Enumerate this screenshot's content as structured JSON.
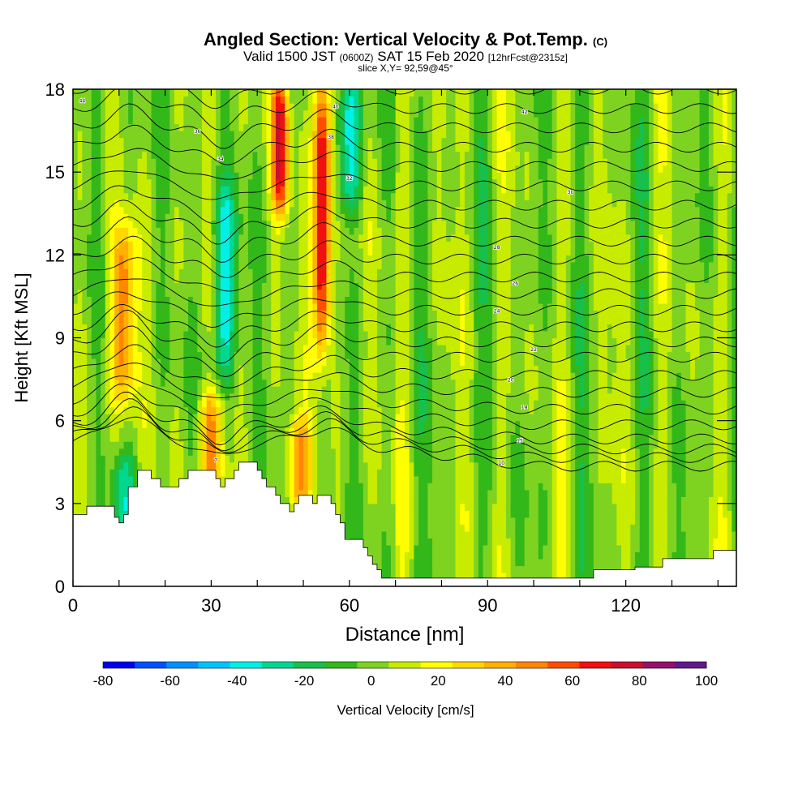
{
  "title": {
    "main": "Angled Section: Vertical Velocity & Pot.Temp.",
    "main_suffix": "(C)",
    "valid_a": "Valid 1500 JST",
    "valid_b": "(0600Z)",
    "valid_c": "SAT 15 Feb 2020",
    "valid_d": "[12hrFcst@2315z]",
    "slice": "slice X,Y= 92,59@45°"
  },
  "chart_data": {
    "type": "heatmap",
    "xlabel": "Distance [nm]",
    "ylabel": "Height [Kft MSL]",
    "xlim": [
      0,
      144
    ],
    "ylim": [
      0,
      18
    ],
    "x_ticks": [
      0,
      30,
      60,
      90,
      120
    ],
    "y_ticks": [
      0,
      3,
      6,
      9,
      12,
      15,
      18
    ],
    "colorbar": {
      "label": "Vertical Velocity [cm/s]",
      "ticks": [
        -80,
        -60,
        -40,
        -20,
        0,
        20,
        40,
        60,
        80,
        100
      ],
      "bins": [
        {
          "lo": -80,
          "hi": -70,
          "color": "#0000ee"
        },
        {
          "lo": -70,
          "hi": -60,
          "color": "#0050ff"
        },
        {
          "lo": -60,
          "hi": -50,
          "color": "#0090ff"
        },
        {
          "lo": -50,
          "hi": -40,
          "color": "#00c4ff"
        },
        {
          "lo": -40,
          "hi": -30,
          "color": "#00f0e6"
        },
        {
          "lo": -30,
          "hi": -20,
          "color": "#00d890"
        },
        {
          "lo": -20,
          "hi": -10,
          "color": "#16c04a"
        },
        {
          "lo": -10,
          "hi": 0,
          "color": "#33b81a"
        },
        {
          "lo": 0,
          "hi": 10,
          "color": "#7ed321"
        },
        {
          "lo": 10,
          "hi": 20,
          "color": "#c8ec00"
        },
        {
          "lo": 20,
          "hi": 30,
          "color": "#ffff00"
        },
        {
          "lo": 30,
          "hi": 40,
          "color": "#ffd800"
        },
        {
          "lo": 40,
          "hi": 50,
          "color": "#ffb000"
        },
        {
          "lo": 50,
          "hi": 60,
          "color": "#ff8600"
        },
        {
          "lo": 60,
          "hi": 70,
          "color": "#ff4d00"
        },
        {
          "lo": 70,
          "hi": 80,
          "color": "#f01010"
        },
        {
          "lo": 80,
          "hi": 90,
          "color": "#c8102e"
        },
        {
          "lo": 90,
          "hi": 100,
          "color": "#96106a"
        },
        {
          "lo": 100,
          "hi": 110,
          "color": "#601a8c"
        }
      ]
    },
    "terrain_kft": [
      [
        0,
        2.6
      ],
      [
        3,
        2.6
      ],
      [
        3,
        2.9
      ],
      [
        9,
        2.9
      ],
      [
        9,
        2.5
      ],
      [
        10,
        2.5
      ],
      [
        10,
        2.3
      ],
      [
        11,
        2.3
      ],
      [
        11,
        2.6
      ],
      [
        12,
        2.6
      ],
      [
        12,
        3.6
      ],
      [
        14,
        3.6
      ],
      [
        14,
        4.2
      ],
      [
        17,
        4.2
      ],
      [
        17,
        3.9
      ],
      [
        19,
        3.9
      ],
      [
        19,
        3.6
      ],
      [
        23,
        3.6
      ],
      [
        23,
        3.9
      ],
      [
        25,
        3.9
      ],
      [
        25,
        4.2
      ],
      [
        31,
        4.2
      ],
      [
        31,
        3.9
      ],
      [
        32,
        3.9
      ],
      [
        32,
        3.6
      ],
      [
        33,
        3.6
      ],
      [
        33,
        3.9
      ],
      [
        35,
        3.9
      ],
      [
        35,
        4.2
      ],
      [
        36,
        4.2
      ],
      [
        36,
        4.5
      ],
      [
        40,
        4.5
      ],
      [
        40,
        4.2
      ],
      [
        41,
        4.2
      ],
      [
        41,
        3.9
      ],
      [
        42,
        3.9
      ],
      [
        42,
        3.6
      ],
      [
        44,
        3.6
      ],
      [
        44,
        3.3
      ],
      [
        45,
        3.3
      ],
      [
        45,
        3.0
      ],
      [
        47,
        3.0
      ],
      [
        47,
        2.7
      ],
      [
        48,
        2.7
      ],
      [
        48,
        3.0
      ],
      [
        49,
        3.0
      ],
      [
        49,
        3.3
      ],
      [
        52,
        3.3
      ],
      [
        52,
        3.0
      ],
      [
        53,
        3.0
      ],
      [
        53,
        3.3
      ],
      [
        56,
        3.3
      ],
      [
        56,
        3.0
      ],
      [
        57,
        3.0
      ],
      [
        57,
        2.6
      ],
      [
        58,
        2.6
      ],
      [
        58,
        2.3
      ],
      [
        59,
        2.3
      ],
      [
        59,
        1.7
      ],
      [
        63,
        1.7
      ],
      [
        63,
        1.4
      ],
      [
        64,
        1.4
      ],
      [
        64,
        1.1
      ],
      [
        65,
        1.1
      ],
      [
        65,
        0.8
      ],
      [
        66,
        0.8
      ],
      [
        66,
        0.6
      ],
      [
        67,
        0.6
      ],
      [
        67,
        0.3
      ],
      [
        113,
        0.3
      ],
      [
        113,
        0.6
      ],
      [
        122,
        0.6
      ],
      [
        122,
        0.7
      ],
      [
        128,
        0.7
      ],
      [
        128,
        1.0
      ],
      [
        139,
        1.0
      ],
      [
        139,
        1.3
      ],
      [
        144,
        1.3
      ]
    ],
    "theta_contour_base_kft": [
      5.25,
      5.45,
      5.65,
      5.9,
      6.3,
      6.75,
      7.25,
      7.75,
      8.3,
      8.85,
      9.4,
      10.0,
      10.6,
      11.2,
      11.85,
      12.5,
      13.15,
      13.8,
      14.5,
      15.2,
      15.9,
      16.6,
      17.3,
      18.0
    ],
    "contour_value_labels": [
      "7",
      "10",
      "15",
      "18",
      "20",
      "22",
      "24",
      "26",
      "28",
      "30",
      "32",
      "34",
      "36",
      "38",
      "40",
      "42",
      "44"
    ],
    "updraft_cores": [
      {
        "x": 11,
        "z_from": 7,
        "z_to": 12.5,
        "peak": 52
      },
      {
        "x": 54,
        "z_from": 9,
        "z_to": 18,
        "peak": 88
      },
      {
        "x": 45,
        "z_from": 14,
        "z_to": 18,
        "peak": 72
      },
      {
        "x": 30,
        "z_from": 3.8,
        "z_to": 6.5,
        "peak": 45
      },
      {
        "x": 49,
        "z_from": 3.0,
        "z_to": 5.5,
        "peak": 45
      }
    ],
    "downdraft_cores": [
      {
        "x": 33,
        "z_from": 8,
        "z_to": 14,
        "peak": -42
      },
      {
        "x": 60,
        "z_from": 14,
        "z_to": 18,
        "peak": -40
      },
      {
        "x": 11,
        "z_from": 2.6,
        "z_to": 4.2,
        "peak": -25
      }
    ]
  }
}
